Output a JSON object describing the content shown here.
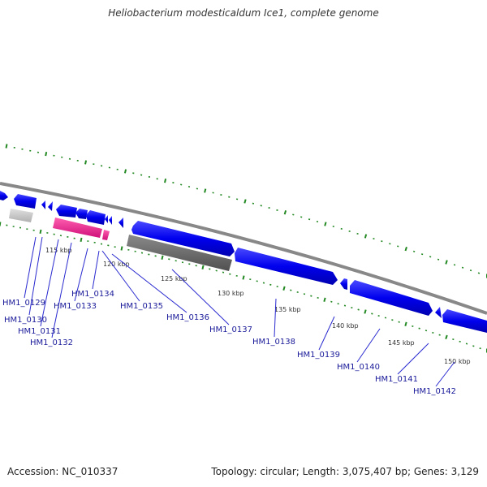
{
  "title": "Heliobacterium modesticaldum Ice1, complete genome",
  "footer": {
    "accession": "Accession: NC_010337",
    "summary": "Topology: circular; Length: 3,075,407 bp; Genes: 3,129"
  },
  "colors": {
    "backbone": "#888888",
    "gene_blue": "#0000ee",
    "gene_pink": "#ee1a88",
    "gene_gray_light": "#c8c8c8",
    "gene_gray_dark": "#6a6a6a",
    "tick_green": "#228822",
    "label_blue": "#1a1a9a"
  },
  "kbp_labels": [
    "115 kbp",
    "120 kbp",
    "125 kbp",
    "130 kbp",
    "135 kbp",
    "140 kbp",
    "145 kbp",
    "150 kbp"
  ],
  "gene_labels": [
    "HM1_0129",
    "HM1_0130",
    "HM1_0131",
    "HM1_0132",
    "HM1_0133",
    "HM1_0134",
    "HM1_0135",
    "HM1_0136",
    "HM1_0137",
    "HM1_0138",
    "HM1_0139",
    "HM1_0140",
    "HM1_0141",
    "HM1_0142"
  ]
}
